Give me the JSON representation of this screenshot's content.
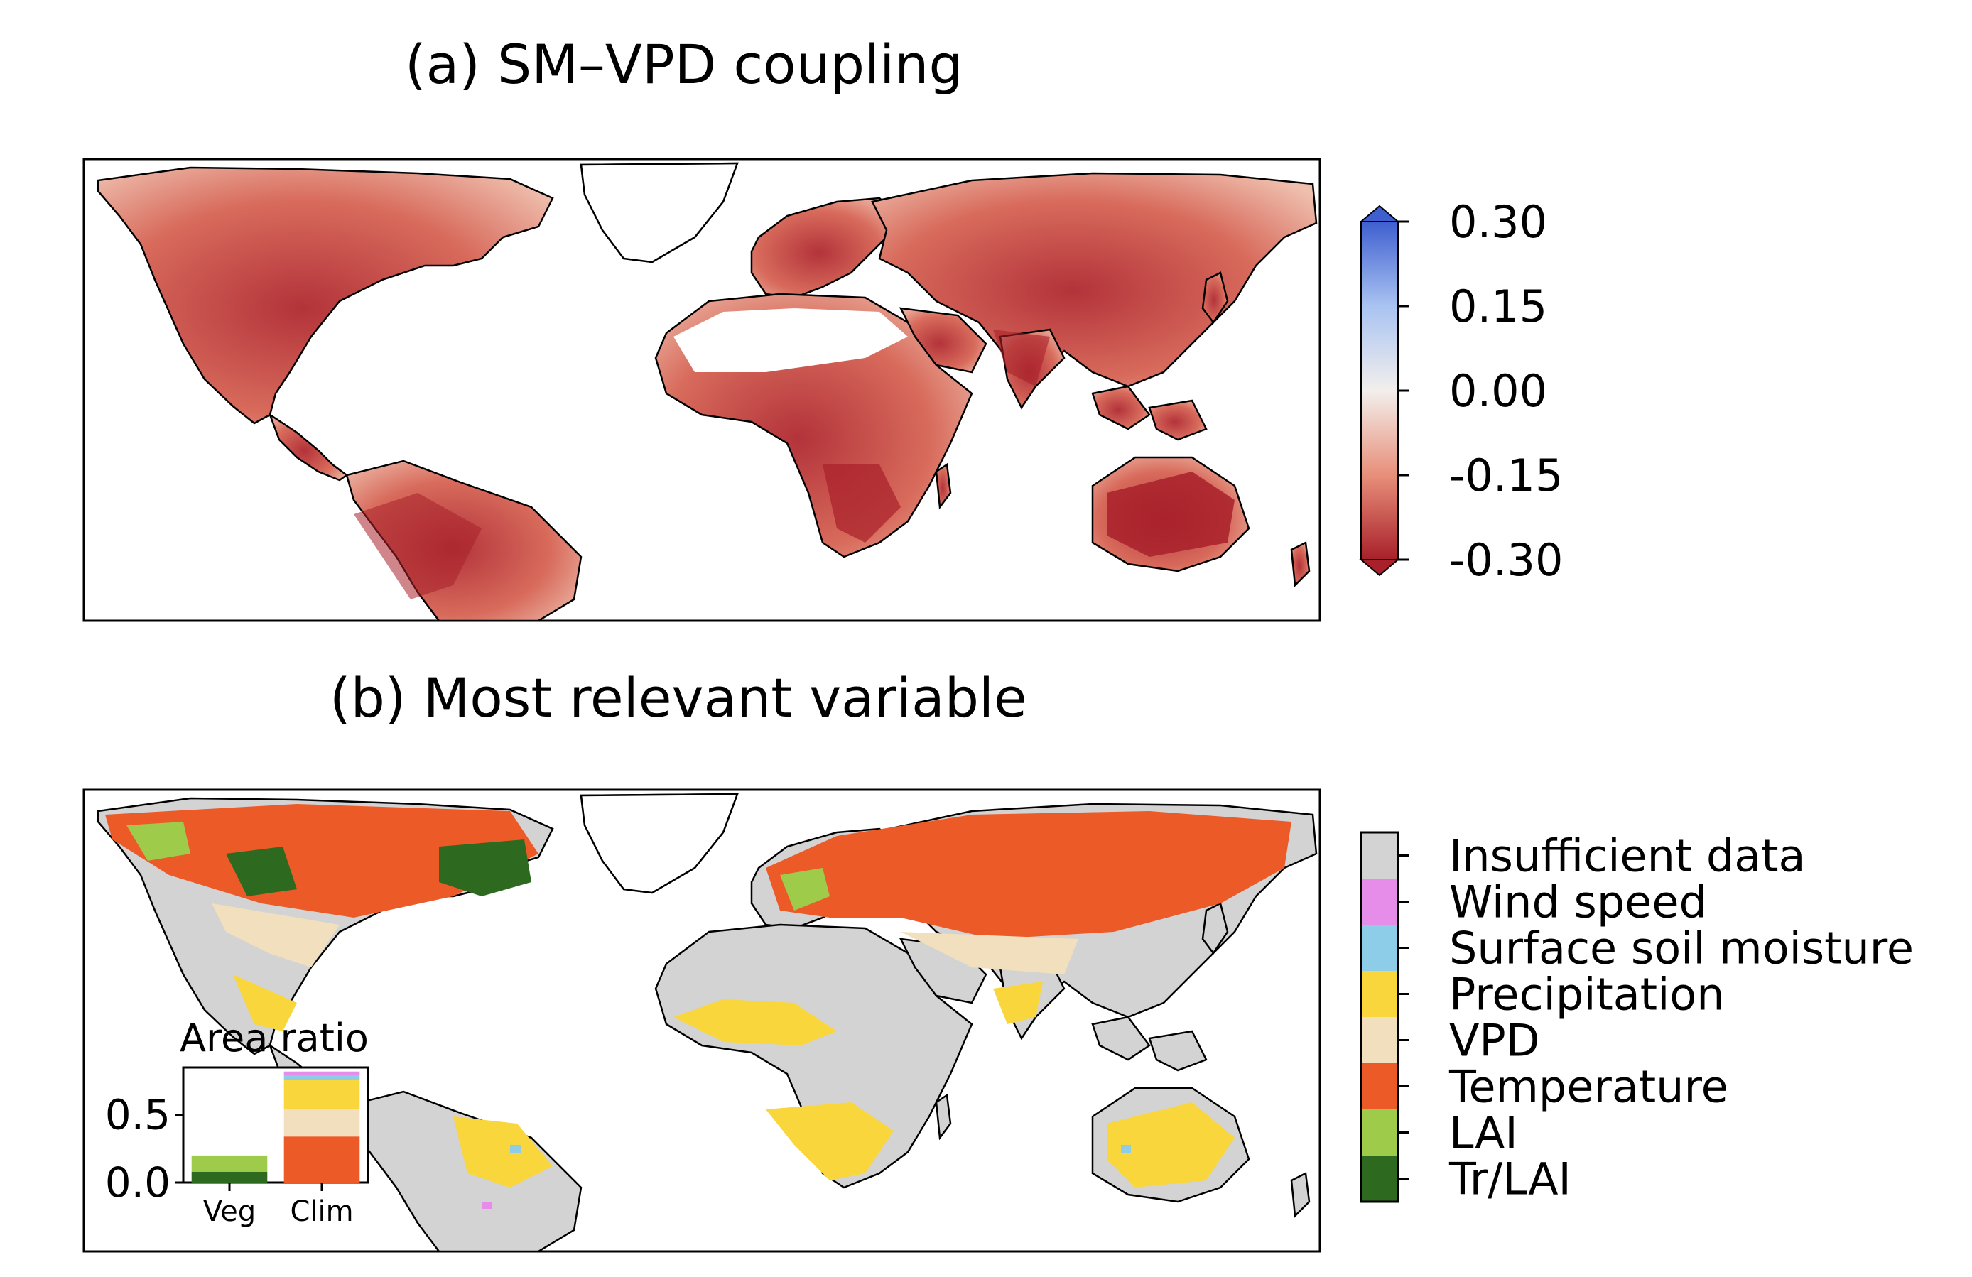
{
  "panel_a": {
    "title": "(a) SM–VPD coupling",
    "colorbar": {
      "ticks": [
        "0.30",
        "0.15",
        "0.00",
        "-0.15",
        "-0.30"
      ],
      "colors": {
        "max": "#3f5fcf",
        "mid_hi": "#a9c3f2",
        "zero": "#f2efec",
        "mid_lo": "#e88f7a",
        "min": "#a8202a"
      },
      "extend": "both"
    }
  },
  "panel_b": {
    "title": "(b) Most relevant variable",
    "legend": [
      {
        "label": "Insufficient data",
        "color": "#d3d3d3"
      },
      {
        "label": "Wind speed",
        "color": "#e58de8"
      },
      {
        "label": "Surface soil moisture",
        "color": "#8ecde8"
      },
      {
        "label": "Precipitation",
        "color": "#f8d63c"
      },
      {
        "label": "VPD",
        "color": "#f2dfbd"
      },
      {
        "label": "Temperature",
        "color": "#ec5a28"
      },
      {
        "label": "LAI",
        "color": "#9ecb4a"
      },
      {
        "label": "Tr/LAI",
        "color": "#2d6a1f"
      }
    ]
  },
  "chart_data": [
    {
      "type": "heatmap",
      "title": "(a) SM–VPD coupling",
      "colorbar_ticks": [
        0.3,
        0.15,
        0.0,
        -0.15,
        -0.3
      ],
      "colorbar_range": [
        -0.3,
        0.3
      ]
    },
    {
      "type": "bar",
      "title": "Area ratio",
      "categories": [
        "Veg",
        "Clim"
      ],
      "yticks": [
        "0.0",
        "0.5"
      ],
      "ylim": [
        0,
        0.85
      ],
      "stacked": true,
      "series": [
        {
          "name": "Tr/LAI",
          "color": "#2d6a1f",
          "values": [
            0.08,
            0
          ]
        },
        {
          "name": "LAI",
          "color": "#9ecb4a",
          "values": [
            0.12,
            0
          ]
        },
        {
          "name": "Temperature",
          "color": "#ec5a28",
          "values": [
            0,
            0.34
          ]
        },
        {
          "name": "VPD",
          "color": "#f2dfbd",
          "values": [
            0,
            0.2
          ]
        },
        {
          "name": "Precipitation",
          "color": "#f8d63c",
          "values": [
            0,
            0.22
          ]
        },
        {
          "name": "Surface soil moisture",
          "color": "#8ecde8",
          "values": [
            0,
            0.03
          ]
        },
        {
          "name": "Wind speed",
          "color": "#e58de8",
          "values": [
            0,
            0.03
          ]
        }
      ]
    }
  ]
}
